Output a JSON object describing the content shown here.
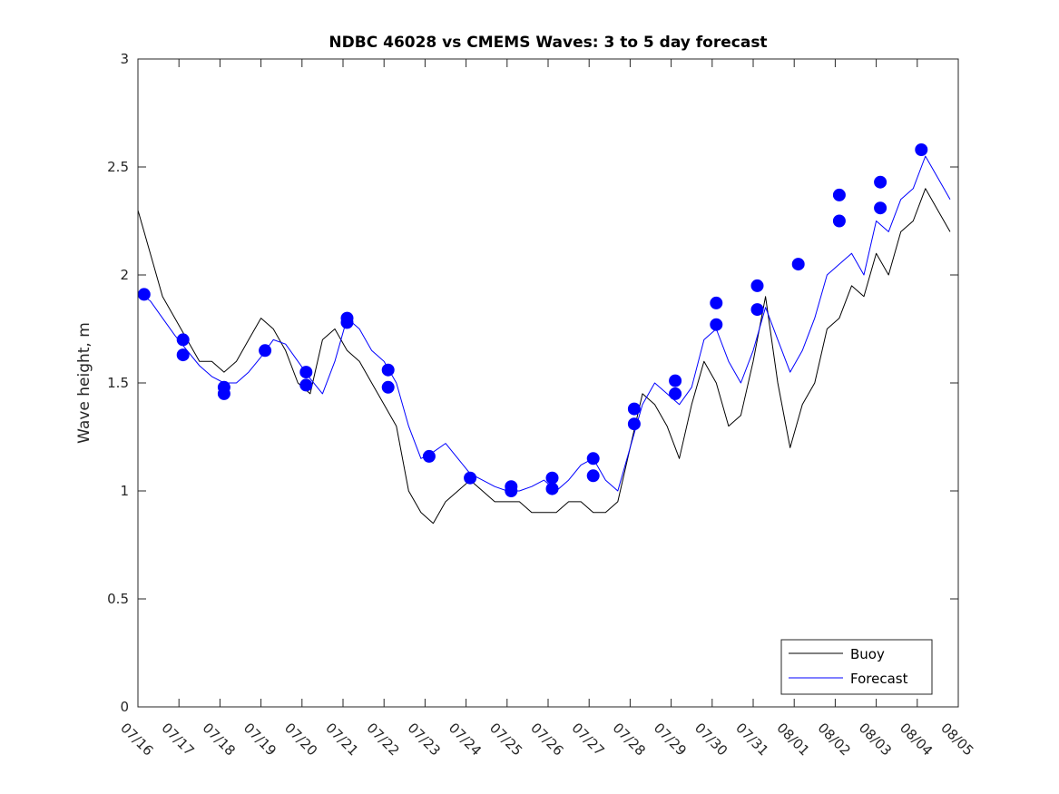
{
  "chart_data": {
    "type": "line",
    "title": "NDBC 46028 vs CMEMS Waves: 3 to 5 day forecast",
    "xlabel": "",
    "ylabel": "Wave height, m",
    "xlim": [
      "07/16",
      "08/05"
    ],
    "ylim": [
      0,
      3
    ],
    "grid": false,
    "legend_position": "bottom-right",
    "x_ticks": [
      "07/16",
      "07/17",
      "07/18",
      "07/19",
      "07/20",
      "07/21",
      "07/22",
      "07/23",
      "07/24",
      "07/25",
      "07/26",
      "07/27",
      "07/28",
      "07/29",
      "07/30",
      "07/31",
      "08/01",
      "08/02",
      "08/03",
      "08/04",
      "08/05"
    ],
    "y_ticks": [
      "0",
      "0.5",
      "1",
      "1.5",
      "2",
      "2.5",
      "3"
    ],
    "colors": {
      "buoy": "#000000",
      "forecast": "#0000ff",
      "marker": "#0000ff"
    },
    "series": [
      {
        "name": "Buoy",
        "color": "#000000",
        "x": [
          0.0,
          0.3,
          0.6,
          0.9,
          1.2,
          1.5,
          1.8,
          2.1,
          2.4,
          2.7,
          3.0,
          3.3,
          3.6,
          3.9,
          4.2,
          4.5,
          4.8,
          5.1,
          5.4,
          5.7,
          6.0,
          6.3,
          6.6,
          6.9,
          7.2,
          7.5,
          7.8,
          8.1,
          8.4,
          8.7,
          9.0,
          9.3,
          9.6,
          9.9,
          10.2,
          10.5,
          10.8,
          11.1,
          11.4,
          11.7,
          12.0,
          12.3,
          12.6,
          12.9,
          13.2,
          13.5,
          13.8,
          14.1,
          14.4,
          14.7,
          15.0,
          15.3,
          15.6,
          15.9,
          16.2,
          16.5,
          16.8,
          17.1,
          17.4,
          17.7,
          18.0,
          18.3,
          18.6,
          18.9,
          19.2,
          19.5,
          19.8
        ],
        "y": [
          2.3,
          2.1,
          1.9,
          1.8,
          1.7,
          1.6,
          1.6,
          1.55,
          1.6,
          1.7,
          1.8,
          1.75,
          1.65,
          1.5,
          1.45,
          1.7,
          1.75,
          1.65,
          1.6,
          1.5,
          1.4,
          1.3,
          1.0,
          0.9,
          0.85,
          0.95,
          1.0,
          1.05,
          1.0,
          0.95,
          0.95,
          0.95,
          0.9,
          0.9,
          0.9,
          0.95,
          0.95,
          0.9,
          0.9,
          0.95,
          1.2,
          1.45,
          1.4,
          1.3,
          1.15,
          1.4,
          1.6,
          1.5,
          1.3,
          1.35,
          1.6,
          1.9,
          1.5,
          1.2,
          1.4,
          1.5,
          1.75,
          1.8,
          1.95,
          1.9,
          2.1,
          2.0,
          2.2,
          2.25,
          2.4,
          2.3,
          2.2
        ]
      },
      {
        "name": "Forecast",
        "color": "#0000ff",
        "x": [
          0.0,
          0.3,
          0.6,
          0.9,
          1.2,
          1.5,
          1.8,
          2.1,
          2.4,
          2.7,
          3.0,
          3.3,
          3.6,
          3.9,
          4.2,
          4.5,
          4.8,
          5.1,
          5.4,
          5.7,
          6.0,
          6.3,
          6.6,
          6.9,
          7.2,
          7.5,
          7.8,
          8.1,
          8.4,
          8.7,
          9.0,
          9.3,
          9.6,
          9.9,
          10.2,
          10.5,
          10.8,
          11.1,
          11.4,
          11.7,
          12.0,
          12.3,
          12.6,
          12.9,
          13.2,
          13.5,
          13.8,
          14.1,
          14.4,
          14.7,
          15.0,
          15.3,
          15.6,
          15.9,
          16.2,
          16.5,
          16.8,
          17.1,
          17.4,
          17.7,
          18.0,
          18.3,
          18.6,
          18.9,
          19.2,
          19.5,
          19.8
        ],
        "y": [
          1.92,
          1.88,
          1.8,
          1.72,
          1.65,
          1.58,
          1.53,
          1.5,
          1.5,
          1.55,
          1.62,
          1.7,
          1.68,
          1.6,
          1.52,
          1.45,
          1.6,
          1.8,
          1.75,
          1.65,
          1.6,
          1.5,
          1.3,
          1.15,
          1.18,
          1.22,
          1.15,
          1.08,
          1.05,
          1.02,
          1.0,
          1.0,
          1.02,
          1.05,
          1.0,
          1.05,
          1.12,
          1.15,
          1.05,
          1.0,
          1.2,
          1.4,
          1.5,
          1.45,
          1.4,
          1.48,
          1.7,
          1.75,
          1.6,
          1.5,
          1.65,
          1.85,
          1.7,
          1.55,
          1.65,
          1.8,
          2.0,
          2.05,
          2.1,
          2.0,
          2.25,
          2.2,
          2.35,
          2.4,
          2.55,
          2.45,
          2.35
        ]
      }
    ],
    "markers": {
      "x": [
        0.15,
        1.1,
        1.1,
        2.1,
        2.1,
        3.1,
        4.1,
        4.1,
        5.1,
        5.1,
        6.1,
        6.1,
        7.1,
        8.1,
        9.1,
        9.1,
        10.1,
        10.1,
        11.1,
        11.1,
        12.1,
        12.1,
        13.1,
        13.1,
        14.1,
        14.1,
        15.1,
        15.1,
        16.1,
        17.1,
        17.1,
        18.1,
        18.1,
        19.1
      ],
      "y": [
        1.91,
        1.7,
        1.63,
        1.48,
        1.45,
        1.65,
        1.55,
        1.49,
        1.8,
        1.78,
        1.56,
        1.48,
        1.16,
        1.06,
        1.02,
        1.0,
        1.06,
        1.01,
        1.15,
        1.07,
        1.38,
        1.31,
        1.51,
        1.45,
        1.87,
        1.77,
        1.95,
        1.84,
        2.05,
        2.37,
        2.25,
        2.43,
        2.31,
        2.58
      ]
    },
    "legend": [
      "Buoy",
      "Forecast"
    ]
  }
}
